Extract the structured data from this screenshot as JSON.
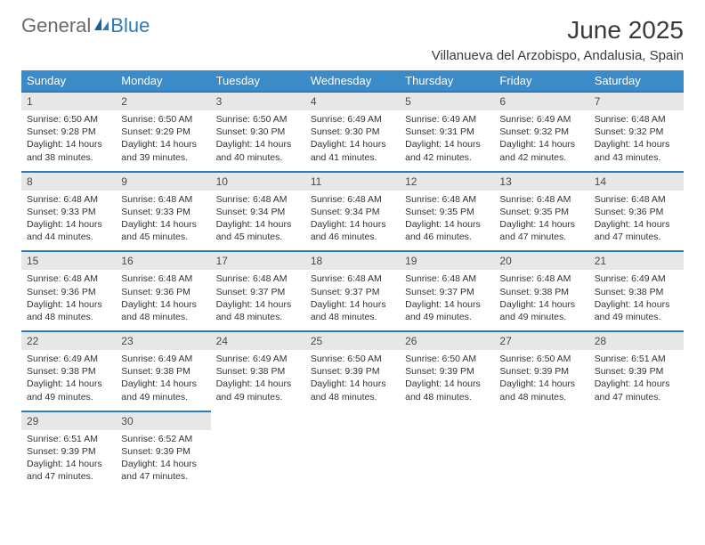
{
  "brand": {
    "part1": "General",
    "part2": "Blue"
  },
  "title": "June 2025",
  "location": "Villanueva del Arzobispo, Andalusia, Spain",
  "colors": {
    "header_bg": "#3c8bc9",
    "header_border": "#2c7abf",
    "daynum_bg": "#e7e7e7",
    "text": "#333333"
  },
  "weekdays": [
    "Sunday",
    "Monday",
    "Tuesday",
    "Wednesday",
    "Thursday",
    "Friday",
    "Saturday"
  ],
  "weeks": [
    [
      {
        "n": "1",
        "sr": "Sunrise: 6:50 AM",
        "ss": "Sunset: 9:28 PM",
        "dl": "Daylight: 14 hours and 38 minutes."
      },
      {
        "n": "2",
        "sr": "Sunrise: 6:50 AM",
        "ss": "Sunset: 9:29 PM",
        "dl": "Daylight: 14 hours and 39 minutes."
      },
      {
        "n": "3",
        "sr": "Sunrise: 6:50 AM",
        "ss": "Sunset: 9:30 PM",
        "dl": "Daylight: 14 hours and 40 minutes."
      },
      {
        "n": "4",
        "sr": "Sunrise: 6:49 AM",
        "ss": "Sunset: 9:30 PM",
        "dl": "Daylight: 14 hours and 41 minutes."
      },
      {
        "n": "5",
        "sr": "Sunrise: 6:49 AM",
        "ss": "Sunset: 9:31 PM",
        "dl": "Daylight: 14 hours and 42 minutes."
      },
      {
        "n": "6",
        "sr": "Sunrise: 6:49 AM",
        "ss": "Sunset: 9:32 PM",
        "dl": "Daylight: 14 hours and 42 minutes."
      },
      {
        "n": "7",
        "sr": "Sunrise: 6:48 AM",
        "ss": "Sunset: 9:32 PM",
        "dl": "Daylight: 14 hours and 43 minutes."
      }
    ],
    [
      {
        "n": "8",
        "sr": "Sunrise: 6:48 AM",
        "ss": "Sunset: 9:33 PM",
        "dl": "Daylight: 14 hours and 44 minutes."
      },
      {
        "n": "9",
        "sr": "Sunrise: 6:48 AM",
        "ss": "Sunset: 9:33 PM",
        "dl": "Daylight: 14 hours and 45 minutes."
      },
      {
        "n": "10",
        "sr": "Sunrise: 6:48 AM",
        "ss": "Sunset: 9:34 PM",
        "dl": "Daylight: 14 hours and 45 minutes."
      },
      {
        "n": "11",
        "sr": "Sunrise: 6:48 AM",
        "ss": "Sunset: 9:34 PM",
        "dl": "Daylight: 14 hours and 46 minutes."
      },
      {
        "n": "12",
        "sr": "Sunrise: 6:48 AM",
        "ss": "Sunset: 9:35 PM",
        "dl": "Daylight: 14 hours and 46 minutes."
      },
      {
        "n": "13",
        "sr": "Sunrise: 6:48 AM",
        "ss": "Sunset: 9:35 PM",
        "dl": "Daylight: 14 hours and 47 minutes."
      },
      {
        "n": "14",
        "sr": "Sunrise: 6:48 AM",
        "ss": "Sunset: 9:36 PM",
        "dl": "Daylight: 14 hours and 47 minutes."
      }
    ],
    [
      {
        "n": "15",
        "sr": "Sunrise: 6:48 AM",
        "ss": "Sunset: 9:36 PM",
        "dl": "Daylight: 14 hours and 48 minutes."
      },
      {
        "n": "16",
        "sr": "Sunrise: 6:48 AM",
        "ss": "Sunset: 9:36 PM",
        "dl": "Daylight: 14 hours and 48 minutes."
      },
      {
        "n": "17",
        "sr": "Sunrise: 6:48 AM",
        "ss": "Sunset: 9:37 PM",
        "dl": "Daylight: 14 hours and 48 minutes."
      },
      {
        "n": "18",
        "sr": "Sunrise: 6:48 AM",
        "ss": "Sunset: 9:37 PM",
        "dl": "Daylight: 14 hours and 48 minutes."
      },
      {
        "n": "19",
        "sr": "Sunrise: 6:48 AM",
        "ss": "Sunset: 9:37 PM",
        "dl": "Daylight: 14 hours and 49 minutes."
      },
      {
        "n": "20",
        "sr": "Sunrise: 6:48 AM",
        "ss": "Sunset: 9:38 PM",
        "dl": "Daylight: 14 hours and 49 minutes."
      },
      {
        "n": "21",
        "sr": "Sunrise: 6:49 AM",
        "ss": "Sunset: 9:38 PM",
        "dl": "Daylight: 14 hours and 49 minutes."
      }
    ],
    [
      {
        "n": "22",
        "sr": "Sunrise: 6:49 AM",
        "ss": "Sunset: 9:38 PM",
        "dl": "Daylight: 14 hours and 49 minutes."
      },
      {
        "n": "23",
        "sr": "Sunrise: 6:49 AM",
        "ss": "Sunset: 9:38 PM",
        "dl": "Daylight: 14 hours and 49 minutes."
      },
      {
        "n": "24",
        "sr": "Sunrise: 6:49 AM",
        "ss": "Sunset: 9:38 PM",
        "dl": "Daylight: 14 hours and 49 minutes."
      },
      {
        "n": "25",
        "sr": "Sunrise: 6:50 AM",
        "ss": "Sunset: 9:39 PM",
        "dl": "Daylight: 14 hours and 48 minutes."
      },
      {
        "n": "26",
        "sr": "Sunrise: 6:50 AM",
        "ss": "Sunset: 9:39 PM",
        "dl": "Daylight: 14 hours and 48 minutes."
      },
      {
        "n": "27",
        "sr": "Sunrise: 6:50 AM",
        "ss": "Sunset: 9:39 PM",
        "dl": "Daylight: 14 hours and 48 minutes."
      },
      {
        "n": "28",
        "sr": "Sunrise: 6:51 AM",
        "ss": "Sunset: 9:39 PM",
        "dl": "Daylight: 14 hours and 47 minutes."
      }
    ],
    [
      {
        "n": "29",
        "sr": "Sunrise: 6:51 AM",
        "ss": "Sunset: 9:39 PM",
        "dl": "Daylight: 14 hours and 47 minutes."
      },
      {
        "n": "30",
        "sr": "Sunrise: 6:52 AM",
        "ss": "Sunset: 9:39 PM",
        "dl": "Daylight: 14 hours and 47 minutes."
      },
      null,
      null,
      null,
      null,
      null
    ]
  ]
}
